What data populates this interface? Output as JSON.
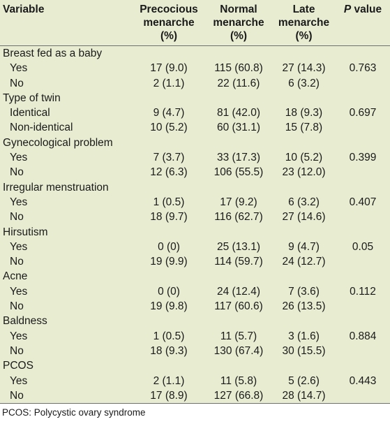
{
  "header": {
    "variable": "Variable",
    "precocious": [
      "Precocious",
      "menarche",
      "(%)"
    ],
    "normal": [
      "Normal",
      "menarche",
      "(%)"
    ],
    "late": [
      "Late",
      "menarche",
      "(%)"
    ],
    "p_italic": "P",
    "p_rest": " value"
  },
  "groups": [
    {
      "label": "Breast fed as a baby",
      "p": "0.763",
      "rows": [
        {
          "label": "Yes",
          "pre": "17 (9.0)",
          "norm": "115 (60.8)",
          "late": "27 (14.3)"
        },
        {
          "label": "No",
          "pre": "2 (1.1)",
          "norm": "22 (11.6)",
          "late": "6 (3.2)"
        }
      ]
    },
    {
      "label": "Type of twin",
      "p": "0.697",
      "rows": [
        {
          "label": "Identical",
          "pre": "9 (4.7)",
          "norm": "81 (42.0)",
          "late": "18 (9.3)"
        },
        {
          "label": "Non-identical",
          "pre": "10 (5.2)",
          "norm": "60 (31.1)",
          "late": "15 (7.8)"
        }
      ]
    },
    {
      "label": "Gynecological problem",
      "p": "0.399",
      "rows": [
        {
          "label": "Yes",
          "pre": "7 (3.7)",
          "norm": "33 (17.3)",
          "late": "10 (5.2)"
        },
        {
          "label": "No",
          "pre": "12 (6.3)",
          "norm": "106 (55.5)",
          "late": "23 (12.0)"
        }
      ]
    },
    {
      "label": "Irregular menstruation",
      "p": "0.407",
      "rows": [
        {
          "label": "Yes",
          "pre": "1 (0.5)",
          "norm": "17 (9.2)",
          "late": "6 (3.2)"
        },
        {
          "label": "No",
          "pre": "18 (9.7)",
          "norm": "116 (62.7)",
          "late": "27 (14.6)"
        }
      ]
    },
    {
      "label": "Hirsutism",
      "p": "0.05",
      "rows": [
        {
          "label": "Yes",
          "pre": "0 (0)",
          "norm": "25 (13.1)",
          "late": "9 (4.7)"
        },
        {
          "label": "No",
          "pre": "19 (9.9)",
          "norm": "114 (59.7)",
          "late": "24 (12.7)"
        }
      ]
    },
    {
      "label": "Acne",
      "p": "0.112",
      "rows": [
        {
          "label": "Yes",
          "pre": "0 (0)",
          "norm": "24 (12.4)",
          "late": "7 (3.6)"
        },
        {
          "label": "No",
          "pre": "19 (9.8)",
          "norm": "117 (60.6)",
          "late": "26 (13.5)"
        }
      ]
    },
    {
      "label": "Baldness",
      "p": "0.884",
      "rows": [
        {
          "label": "Yes",
          "pre": "1 (0.5)",
          "norm": "11 (5.7)",
          "late": "3 (1.6)"
        },
        {
          "label": "No",
          "pre": "18 (9.3)",
          "norm": "130 (67.4)",
          "late": "30 (15.5)"
        }
      ]
    },
    {
      "label": "PCOS",
      "p": "0.443",
      "rows": [
        {
          "label": "Yes",
          "pre": "2 (1.1)",
          "norm": "11 (5.8)",
          "late": "5 (2.6)"
        },
        {
          "label": "No",
          "pre": "17 (8.9)",
          "norm": "127 (66.8)",
          "late": "28 (14.7)"
        }
      ]
    }
  ],
  "footnote": "PCOS: Polycystic ovary syndrome"
}
